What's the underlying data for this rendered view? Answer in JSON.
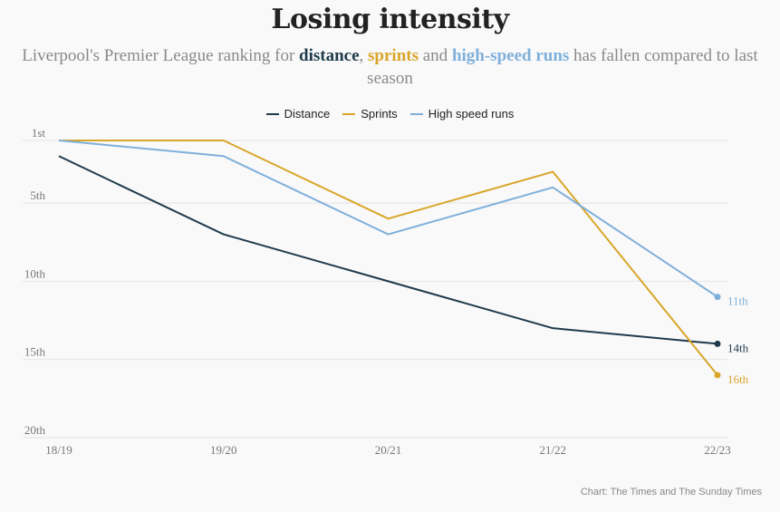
{
  "title": "Losing intensity",
  "subtitle": {
    "pre": "Liverpool's Premier League ranking for ",
    "distance": "distance",
    "sep1": ", ",
    "sprints": "sprints",
    "sep2": " and ",
    "hsr": "high-speed runs",
    "post": " has fallen compared to last season"
  },
  "source": "Chart: The Times and The Sunday Times",
  "chart_data": {
    "type": "line",
    "x": [
      "18/19",
      "19/20",
      "20/21",
      "21/22",
      "22/23"
    ],
    "y_ticks": [
      {
        "value": 1,
        "label": "1st"
      },
      {
        "value": 5,
        "label": "5th"
      },
      {
        "value": 10,
        "label": "10th"
      },
      {
        "value": 15,
        "label": "15th"
      },
      {
        "value": 20,
        "label": "20th"
      }
    ],
    "ylim": [
      1,
      20
    ],
    "y_inverted": true,
    "grid": true,
    "legend_position": "top-center",
    "series": [
      {
        "name": "Distance",
        "color": "#1f3a4b",
        "values": [
          2,
          7,
          10,
          13,
          14
        ],
        "end_label": "14th"
      },
      {
        "name": "Sprints",
        "color": "#d9a62a",
        "values": [
          1,
          1,
          6,
          3,
          16
        ],
        "end_label": "16th"
      },
      {
        "name": "High speed runs",
        "color": "#7fb0db",
        "values": [
          1,
          2,
          7,
          4,
          11
        ],
        "end_label": "11th"
      }
    ]
  }
}
